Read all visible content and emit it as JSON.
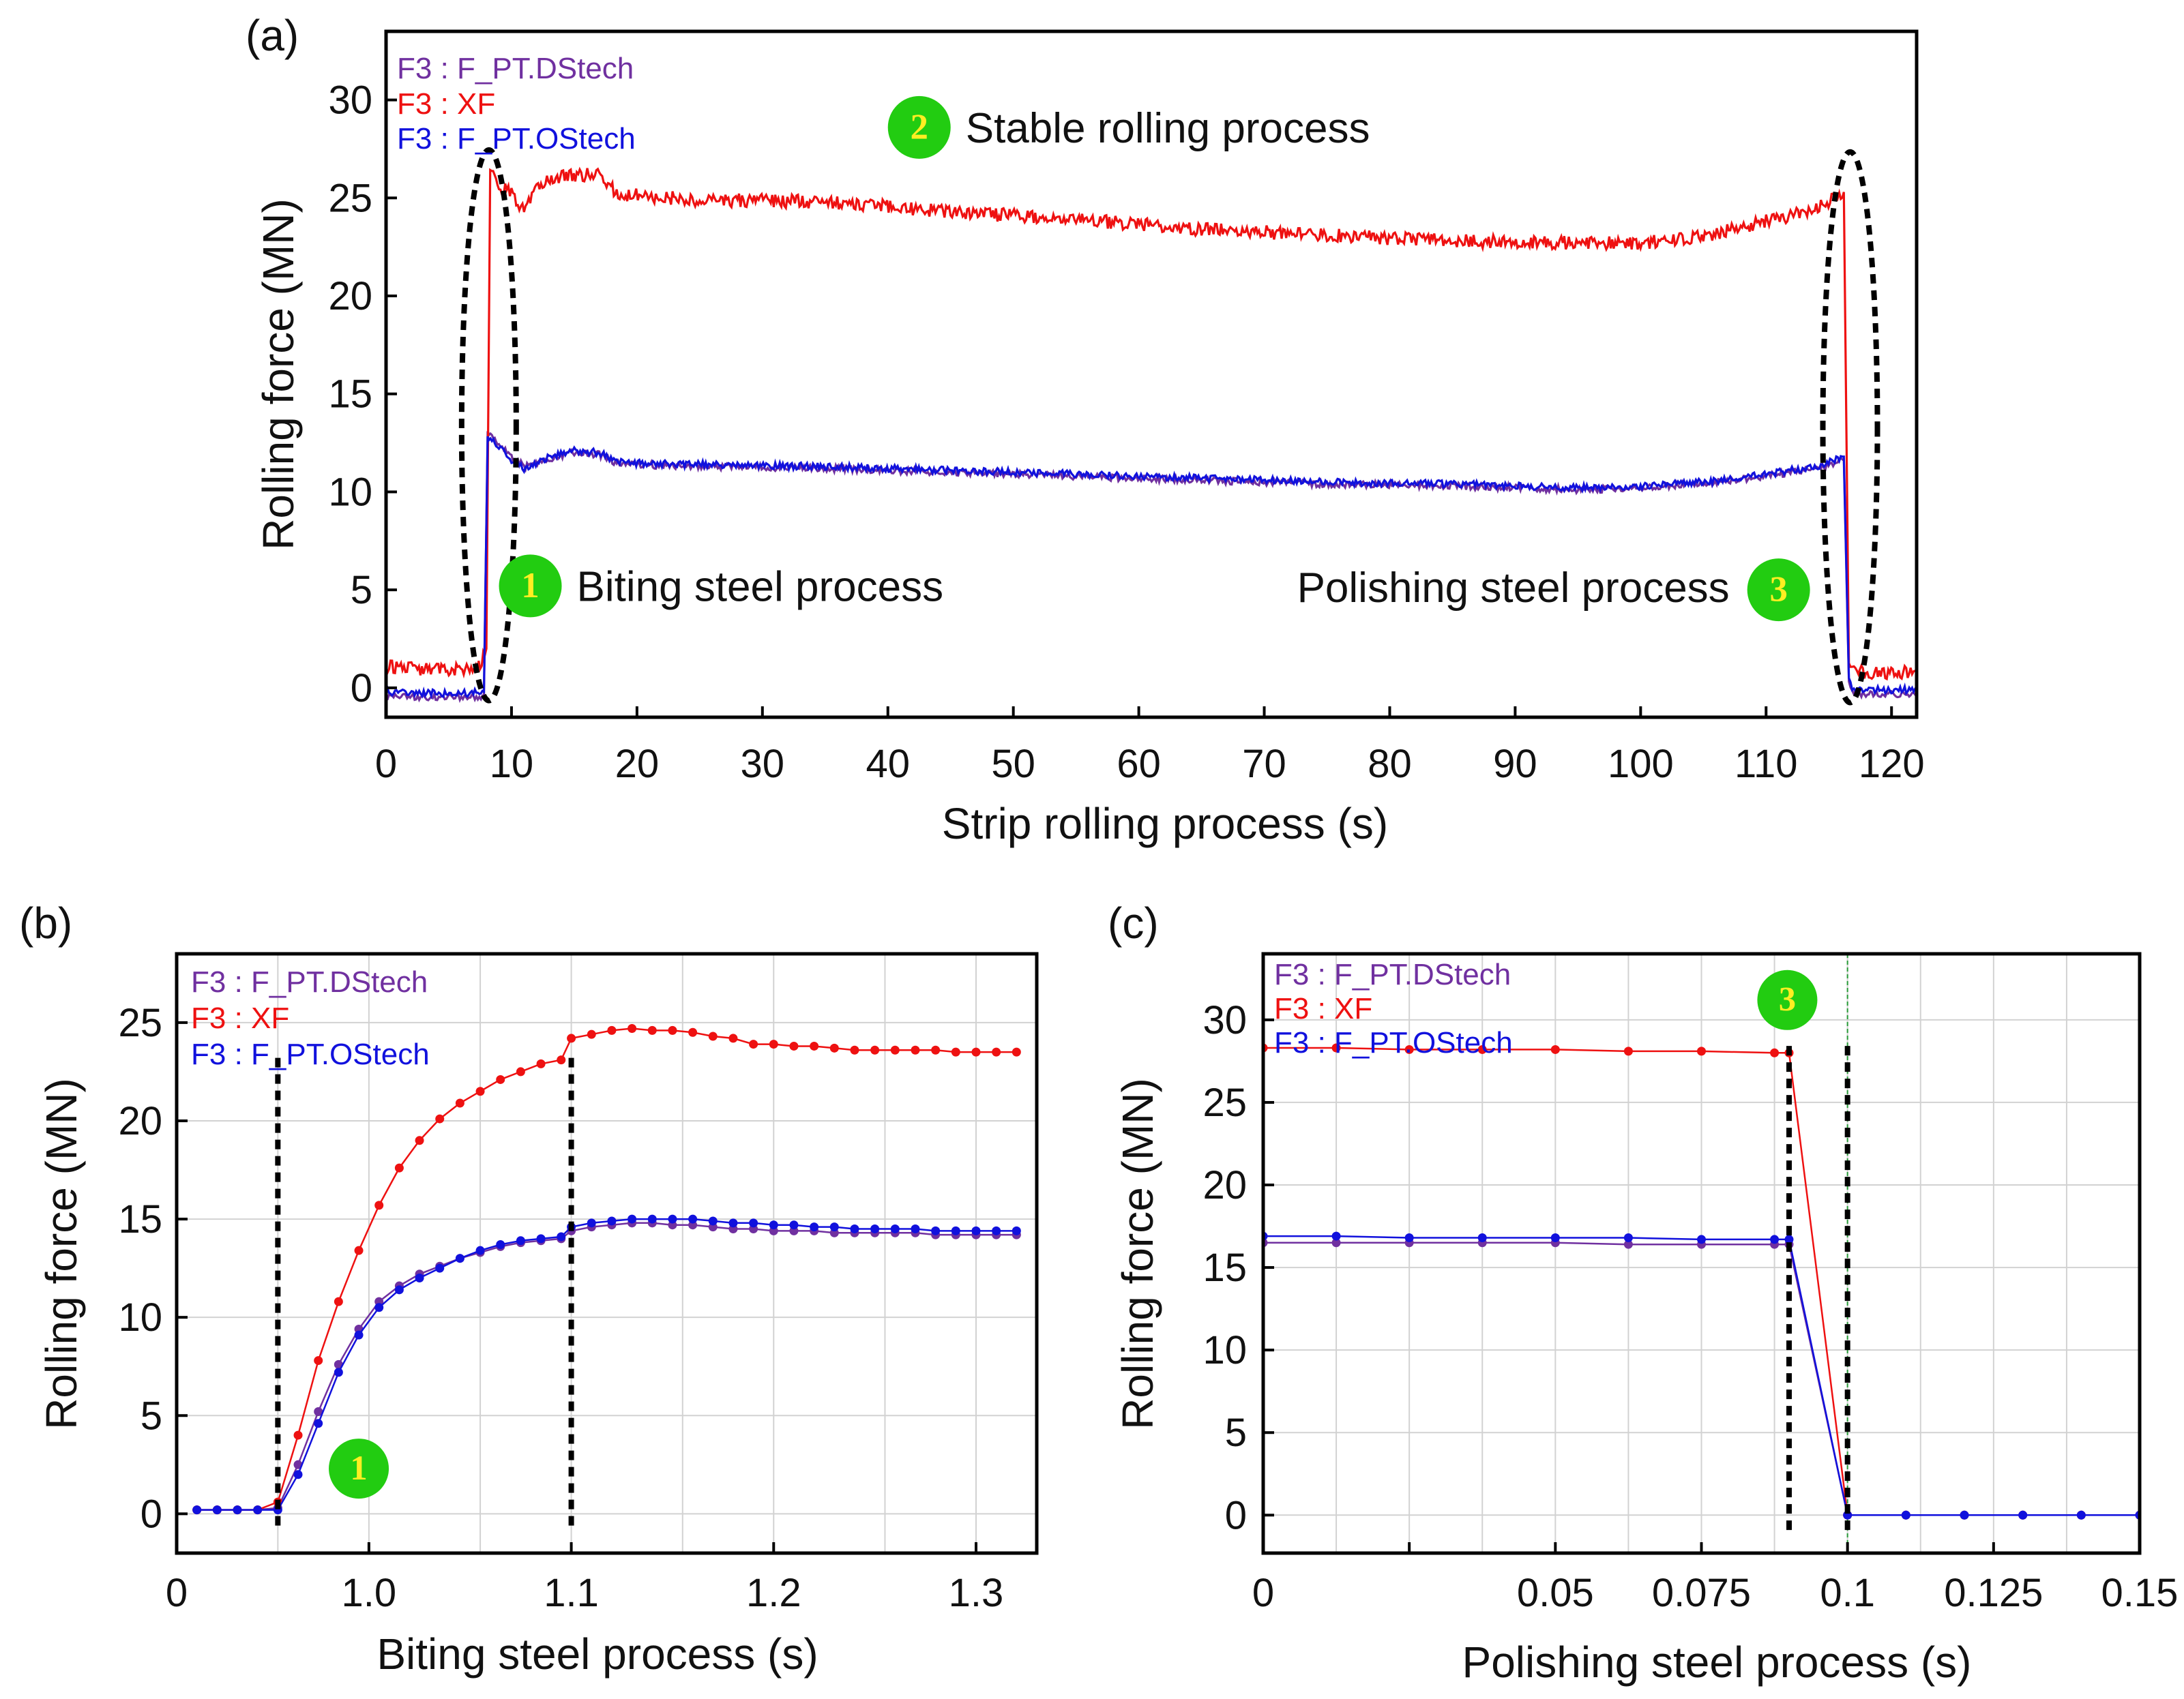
{
  "chart_data": [
    {
      "panel": "(a)",
      "type": "line",
      "xlabel": "Strip rolling process (s)",
      "ylabel": "Rolling force (MN)",
      "xlim": [
        0,
        122
      ],
      "ylim": [
        -1.5,
        33.5
      ],
      "xticks": [
        0,
        10,
        20,
        30,
        40,
        50,
        60,
        70,
        80,
        90,
        100,
        110,
        120
      ],
      "yticks": [
        0,
        5,
        10,
        15,
        20,
        25,
        30
      ],
      "grid": false,
      "legend_position": "top-left",
      "series": [
        {
          "name": "F3 : F_PT.DStech",
          "color": "#7030a0",
          "points": [
            [
              0,
              -0.4
            ],
            [
              6,
              -0.5
            ],
            [
              7.8,
              -0.4
            ],
            [
              8.1,
              13.1
            ],
            [
              9,
              12.5
            ],
            [
              10,
              11.8
            ],
            [
              11,
              11.3
            ],
            [
              13,
              11.7
            ],
            [
              15,
              12
            ],
            [
              17,
              11.9
            ],
            [
              18.5,
              11.4
            ],
            [
              25,
              11.3
            ],
            [
              35,
              11.2
            ],
            [
              45,
              11
            ],
            [
              55,
              10.8
            ],
            [
              65,
              10.6
            ],
            [
              75,
              10.4
            ],
            [
              85,
              10.3
            ],
            [
              95,
              10.1
            ],
            [
              100,
              10.2
            ],
            [
              105,
              10.4
            ],
            [
              110,
              10.8
            ],
            [
              114,
              11.2
            ],
            [
              116.2,
              11.6
            ],
            [
              116.6,
              0.2
            ],
            [
              117,
              -0.3
            ],
            [
              122,
              -0.3
            ]
          ]
        },
        {
          "name": "F3 : XF",
          "color": "#ee1111",
          "points": [
            [
              0,
              1.1
            ],
            [
              5,
              0.9
            ],
            [
              7.5,
              1.1
            ],
            [
              8,
              2
            ],
            [
              8.3,
              26.4
            ],
            [
              9,
              25.6
            ],
            [
              10,
              25.2
            ],
            [
              11,
              24.4
            ],
            [
              12,
              25.6
            ],
            [
              14,
              26.1
            ],
            [
              17,
              26.2
            ],
            [
              18.5,
              25.2
            ],
            [
              25,
              24.9
            ],
            [
              35,
              24.8
            ],
            [
              45,
              24.3
            ],
            [
              55,
              23.9
            ],
            [
              65,
              23.4
            ],
            [
              75,
              23.1
            ],
            [
              85,
              22.8
            ],
            [
              95,
              22.7
            ],
            [
              100,
              22.7
            ],
            [
              105,
              23
            ],
            [
              110,
              23.8
            ],
            [
              114,
              24.4
            ],
            [
              116.2,
              25.3
            ],
            [
              116.6,
              1
            ],
            [
              117,
              0.8
            ],
            [
              122,
              0.8
            ]
          ]
        },
        {
          "name": "F3 : F_PT.OStech",
          "color": "#1111dd",
          "points": [
            [
              0,
              -0.2
            ],
            [
              6,
              -0.3
            ],
            [
              7.8,
              -0.2
            ],
            [
              8.1,
              12.9
            ],
            [
              9,
              12.3
            ],
            [
              10,
              11.6
            ],
            [
              11,
              11.2
            ],
            [
              13,
              11.8
            ],
            [
              15,
              12.1
            ],
            [
              17,
              12
            ],
            [
              18.5,
              11.5
            ],
            [
              25,
              11.4
            ],
            [
              35,
              11.3
            ],
            [
              45,
              11.1
            ],
            [
              55,
              10.9
            ],
            [
              65,
              10.7
            ],
            [
              75,
              10.5
            ],
            [
              85,
              10.4
            ],
            [
              95,
              10.2
            ],
            [
              100,
              10.3
            ],
            [
              105,
              10.5
            ],
            [
              110,
              10.9
            ],
            [
              114,
              11.3
            ],
            [
              116.2,
              11.8
            ],
            [
              116.6,
              0.4
            ],
            [
              117,
              -0.1
            ],
            [
              122,
              -0.1
            ]
          ]
        }
      ],
      "annotations": [
        {
          "badge": "1",
          "text": "Biting steel process",
          "x": 11.5,
          "y": 5.2
        },
        {
          "badge": "2",
          "text": "Stable rolling process",
          "x": 42.5,
          "y": 28.6
        },
        {
          "badge": "3",
          "text": "Polishing steel process",
          "x": 111,
          "y": 5
        }
      ]
    },
    {
      "panel": "(b)",
      "type": "line",
      "xlabel": "Biting steel process (s)",
      "ylabel": "Rolling force (MN)",
      "xlim": [
        0.905,
        1.33
      ],
      "ylim": [
        -2,
        28.5
      ],
      "xticks": [
        0.905,
        1.0,
        1.1,
        1.2,
        1.3
      ],
      "xticklabels": [
        "0",
        "1.0",
        "1.1",
        "1.2",
        "1.3"
      ],
      "yticks": [
        0,
        5,
        10,
        15,
        20,
        25
      ],
      "grid": true,
      "legend_position": "top-left",
      "series": [
        {
          "name": "F3 : F_PT.DStech",
          "color": "#7030a0",
          "x": [
            0.915,
            0.925,
            0.935,
            0.945,
            0.955,
            0.965,
            0.975,
            0.985,
            0.995,
            1.005,
            1.015,
            1.025,
            1.035,
            1.045,
            1.055,
            1.065,
            1.075,
            1.085,
            1.095,
            1.1,
            1.11,
            1.12,
            1.13,
            1.14,
            1.15,
            1.16,
            1.17,
            1.18,
            1.19,
            1.2,
            1.21,
            1.22,
            1.23,
            1.24,
            1.25,
            1.26,
            1.27,
            1.28,
            1.29,
            1.3,
            1.31,
            1.32
          ],
          "values": [
            0.2,
            0.2,
            0.2,
            0.2,
            0.3,
            2.5,
            5.2,
            7.6,
            9.4,
            10.8,
            11.6,
            12.2,
            12.6,
            13,
            13.3,
            13.6,
            13.8,
            13.9,
            14,
            14.4,
            14.6,
            14.7,
            14.8,
            14.8,
            14.7,
            14.7,
            14.6,
            14.5,
            14.5,
            14.4,
            14.4,
            14.4,
            14.3,
            14.3,
            14.3,
            14.3,
            14.3,
            14.2,
            14.2,
            14.2,
            14.2,
            14.2
          ]
        },
        {
          "name": "F3 : XF",
          "color": "#ee1111",
          "x": [
            0.915,
            0.925,
            0.935,
            0.945,
            0.955,
            0.965,
            0.975,
            0.985,
            0.995,
            1.005,
            1.015,
            1.025,
            1.035,
            1.045,
            1.055,
            1.065,
            1.075,
            1.085,
            1.095,
            1.1,
            1.11,
            1.12,
            1.13,
            1.14,
            1.15,
            1.16,
            1.17,
            1.18,
            1.19,
            1.2,
            1.21,
            1.22,
            1.23,
            1.24,
            1.25,
            1.26,
            1.27,
            1.28,
            1.29,
            1.3,
            1.31,
            1.32
          ],
          "values": [
            0.2,
            0.2,
            0.2,
            0.2,
            0.6,
            4,
            7.8,
            10.8,
            13.4,
            15.7,
            17.6,
            19,
            20.1,
            20.9,
            21.5,
            22.1,
            22.5,
            22.9,
            23.1,
            24.2,
            24.4,
            24.6,
            24.7,
            24.6,
            24.6,
            24.5,
            24.3,
            24.2,
            23.9,
            23.9,
            23.8,
            23.8,
            23.7,
            23.6,
            23.6,
            23.6,
            23.6,
            23.6,
            23.5,
            23.5,
            23.5,
            23.5
          ]
        },
        {
          "name": "F3 : F_PT.OStech",
          "color": "#1111dd",
          "x": [
            0.915,
            0.925,
            0.935,
            0.945,
            0.955,
            0.965,
            0.975,
            0.985,
            0.995,
            1.005,
            1.015,
            1.025,
            1.035,
            1.045,
            1.055,
            1.065,
            1.075,
            1.085,
            1.095,
            1.1,
            1.11,
            1.12,
            1.13,
            1.14,
            1.15,
            1.16,
            1.17,
            1.18,
            1.19,
            1.2,
            1.21,
            1.22,
            1.23,
            1.24,
            1.25,
            1.26,
            1.27,
            1.28,
            1.29,
            1.3,
            1.31,
            1.32
          ],
          "values": [
            0.2,
            0.2,
            0.2,
            0.2,
            0.2,
            2,
            4.6,
            7.2,
            9.1,
            10.5,
            11.4,
            12,
            12.5,
            13,
            13.4,
            13.7,
            13.9,
            14,
            14.1,
            14.6,
            14.8,
            14.9,
            15,
            15,
            15,
            15,
            14.9,
            14.8,
            14.8,
            14.7,
            14.7,
            14.6,
            14.6,
            14.5,
            14.5,
            14.5,
            14.5,
            14.4,
            14.4,
            14.4,
            14.4,
            14.4
          ]
        }
      ],
      "vlines": [
        0.955,
        1.1
      ],
      "annotations": [
        {
          "badge": "1",
          "x": 0.995,
          "y": 2.3
        }
      ]
    },
    {
      "panel": "(c)",
      "type": "line",
      "xlabel": "Polishing steel process (s)",
      "ylabel": "Rolling force (MN)",
      "xlim": [
        0,
        0.15
      ],
      "ylim": [
        -2.3,
        34
      ],
      "xticks": [
        0,
        0.025,
        0.05,
        0.075,
        0.1,
        0.125,
        0.15
      ],
      "xticklabels": [
        "0",
        "",
        "0.05",
        "0.075",
        "0.1",
        "0.125",
        "0.15"
      ],
      "yticks": [
        0,
        5,
        10,
        15,
        20,
        25,
        30
      ],
      "grid": true,
      "legend_position": "top-left",
      "series": [
        {
          "name": "F3 : F_PT.DStech",
          "color": "#7030a0",
          "x": [
            0,
            0.0125,
            0.025,
            0.0375,
            0.05,
            0.0625,
            0.075,
            0.0875,
            0.09,
            0.1,
            0.11,
            0.12,
            0.13,
            0.14,
            0.15
          ],
          "values": [
            16.5,
            16.5,
            16.5,
            16.5,
            16.5,
            16.4,
            16.4,
            16.4,
            16.4,
            0,
            0,
            0,
            0,
            0,
            0
          ]
        },
        {
          "name": "F3 : XF",
          "color": "#ee1111",
          "x": [
            0,
            0.0125,
            0.025,
            0.0375,
            0.05,
            0.0625,
            0.075,
            0.0875,
            0.09,
            0.1,
            0.11,
            0.12,
            0.13,
            0.14,
            0.15
          ],
          "values": [
            28.3,
            28.3,
            28.2,
            28.2,
            28.2,
            28.1,
            28.1,
            28,
            28,
            0,
            0,
            0,
            0,
            0,
            0
          ]
        },
        {
          "name": "F3 : F_PT.OStech",
          "color": "#1111dd",
          "x": [
            0,
            0.0125,
            0.025,
            0.0375,
            0.05,
            0.0625,
            0.075,
            0.0875,
            0.09,
            0.1,
            0.11,
            0.12,
            0.13,
            0.14,
            0.15
          ],
          "values": [
            16.9,
            16.9,
            16.8,
            16.8,
            16.8,
            16.8,
            16.7,
            16.7,
            16.7,
            0,
            0,
            0,
            0,
            0,
            0
          ]
        }
      ],
      "vlines": [
        0.09,
        0.1
      ],
      "greenline": 0.1,
      "annotations": [
        {
          "badge": "3",
          "x": 0.0897,
          "y": 31.2
        }
      ]
    }
  ]
}
